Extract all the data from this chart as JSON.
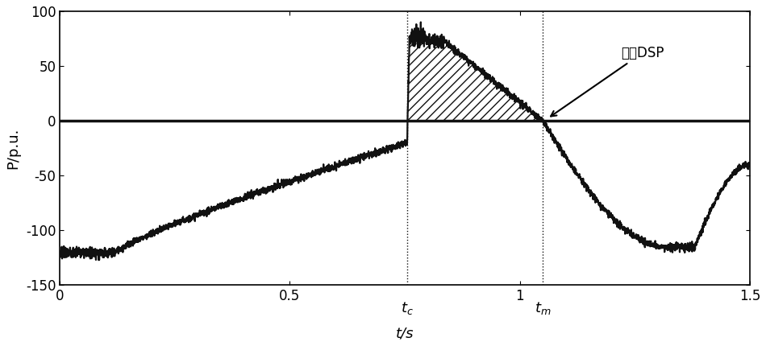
{
  "xlabel": "t/s",
  "ylabel": "P/p.u.",
  "xlim": [
    0,
    1.5
  ],
  "ylim": [
    -150,
    100
  ],
  "yticks": [
    -150,
    -100,
    -50,
    0,
    50,
    100
  ],
  "xticks_numeric": [
    0,
    0.5,
    1,
    1.5
  ],
  "xtick_labels": [
    "0",
    "0.5",
    "1",
    "1.5"
  ],
  "tc": 0.755,
  "tm": 1.05,
  "tc_label": "$t_c$",
  "tm_label": "$t_m$",
  "annotation_text": "到达DSP",
  "hatch_pattern": "///",
  "line_color": "#111111",
  "zero_line_lw": 2.5,
  "signal_lw": 1.6,
  "background_color": "white",
  "figsize": [
    9.5,
    4.3
  ],
  "dpi": 100
}
